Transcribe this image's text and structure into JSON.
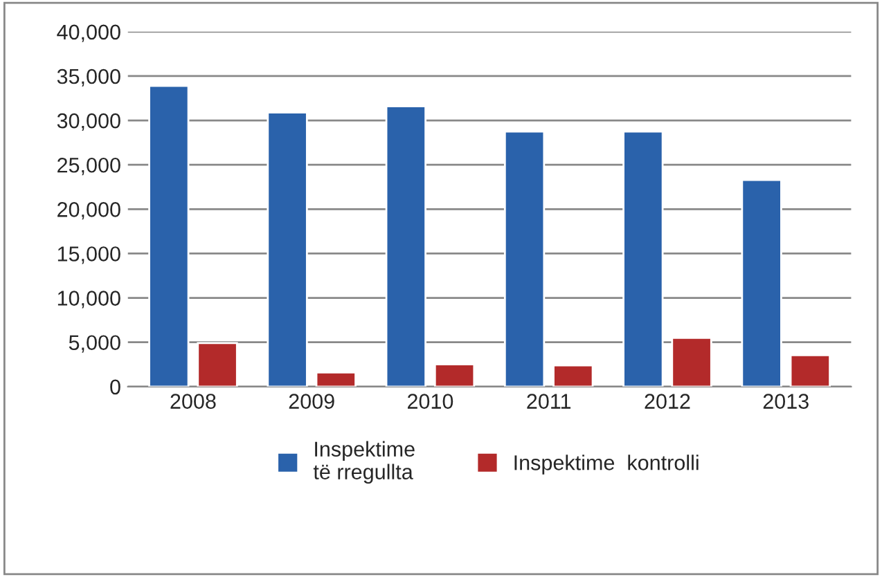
{
  "chart_data": {
    "type": "bar",
    "categories": [
      "2008",
      "2009",
      "2010",
      "2011",
      "2012",
      "2013"
    ],
    "series": [
      {
        "name": "Inspektime\ntë rregullta",
        "color": "#2a62ab",
        "values": [
          33900,
          30900,
          31600,
          28750,
          28750,
          23300
        ]
      },
      {
        "name": "Inspektime  kontrolli",
        "color": "#b32a2a",
        "values": [
          4900,
          1600,
          2500,
          2400,
          5500,
          3550
        ]
      }
    ],
    "ylim": [
      0,
      40000
    ],
    "yticks": [
      {
        "value": 0,
        "label": "0"
      },
      {
        "value": 5000,
        "label": "5,000"
      },
      {
        "value": 10000,
        "label": "10,000"
      },
      {
        "value": 15000,
        "label": "15,000"
      },
      {
        "value": 20000,
        "label": "20,000"
      },
      {
        "value": 25000,
        "label": "25,000"
      },
      {
        "value": 30000,
        "label": "30,000"
      },
      {
        "value": 35000,
        "label": "35,000"
      },
      {
        "value": 40000,
        "label": "40,000"
      }
    ],
    "grid": "y",
    "legend": "bottom"
  }
}
